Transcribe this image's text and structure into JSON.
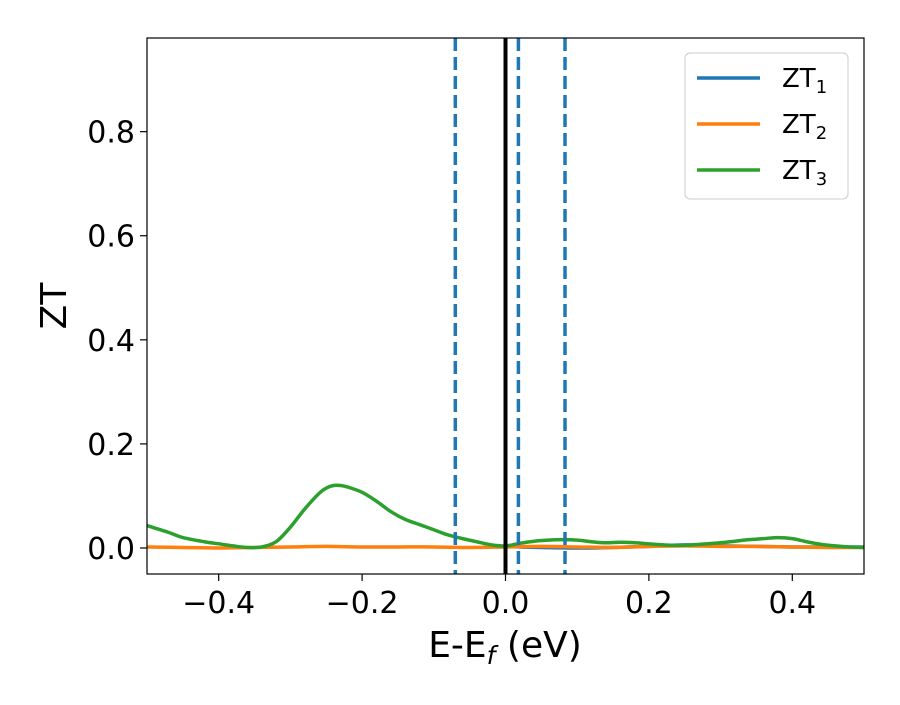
{
  "chart_data": {
    "type": "line",
    "title": "",
    "xlabel": {
      "main": "E-E",
      "sub": "f",
      "tail": " (eV)"
    },
    "ylabel": "ZT",
    "xlim": [
      -0.5,
      0.5
    ],
    "ylim": [
      -0.05,
      0.98
    ],
    "x_ticks": [
      -0.4,
      -0.2,
      0.0,
      0.2,
      0.4
    ],
    "x_tick_labels": [
      "−0.4",
      "−0.2",
      "0.0",
      "0.2",
      "0.4"
    ],
    "y_ticks": [
      0.0,
      0.2,
      0.4,
      0.6,
      0.8
    ],
    "y_tick_labels": [
      "0.0",
      "0.2",
      "0.4",
      "0.6",
      "0.8"
    ],
    "grid": false,
    "legend_position": "top-right",
    "series": [
      {
        "name": "ZT",
        "sub": "1",
        "color": "#1f77b4",
        "x": [
          0.0,
          0.02,
          0.05,
          0.1,
          0.15,
          0.2,
          0.25,
          0.3,
          0.35,
          0.4,
          0.45,
          0.5
        ],
        "y": [
          0.003,
          0.002,
          0.001,
          0.0,
          0.001,
          0.003,
          0.006,
          0.004,
          0.003,
          0.002,
          0.002,
          0.002
        ]
      },
      {
        "name": "ZT",
        "sub": "2",
        "color": "#ff7f0e",
        "x": [
          -0.5,
          -0.45,
          -0.4,
          -0.35,
          -0.3,
          -0.25,
          -0.2,
          -0.15,
          -0.1,
          -0.05,
          0.0,
          0.05,
          0.1,
          0.15,
          0.2,
          0.25,
          0.3,
          0.35,
          0.4,
          0.45,
          0.5
        ],
        "y": [
          0.002,
          0.001,
          0.0,
          0.001,
          0.002,
          0.003,
          0.002,
          0.002,
          0.002,
          0.001,
          0.002,
          0.003,
          0.002,
          0.001,
          0.003,
          0.004,
          0.003,
          0.003,
          0.002,
          0.001,
          0.001
        ]
      },
      {
        "name": "ZT",
        "sub": "3",
        "color": "#2ca02c",
        "x": [
          -0.5,
          -0.47,
          -0.45,
          -0.42,
          -0.4,
          -0.38,
          -0.36,
          -0.34,
          -0.32,
          -0.3,
          -0.28,
          -0.26,
          -0.25,
          -0.24,
          -0.23,
          -0.22,
          -0.2,
          -0.18,
          -0.16,
          -0.14,
          -0.12,
          -0.1,
          -0.08,
          -0.06,
          -0.04,
          -0.02,
          0.0,
          0.02,
          0.04,
          0.06,
          0.08,
          0.1,
          0.12,
          0.14,
          0.16,
          0.18,
          0.2,
          0.22,
          0.24,
          0.26,
          0.28,
          0.3,
          0.32,
          0.34,
          0.36,
          0.38,
          0.4,
          0.42,
          0.44,
          0.46,
          0.48,
          0.5
        ],
        "y": [
          0.043,
          0.03,
          0.02,
          0.012,
          0.008,
          0.004,
          0.001,
          0.002,
          0.012,
          0.04,
          0.075,
          0.105,
          0.115,
          0.12,
          0.12,
          0.117,
          0.107,
          0.09,
          0.07,
          0.055,
          0.045,
          0.035,
          0.025,
          0.018,
          0.012,
          0.006,
          0.004,
          0.009,
          0.013,
          0.015,
          0.016,
          0.015,
          0.012,
          0.01,
          0.011,
          0.01,
          0.008,
          0.006,
          0.005,
          0.006,
          0.008,
          0.01,
          0.013,
          0.016,
          0.018,
          0.02,
          0.018,
          0.012,
          0.007,
          0.004,
          0.002,
          0.001
        ]
      }
    ],
    "vertical_lines": [
      {
        "x": -0.07,
        "style": "dashed",
        "color": "#1f77b4"
      },
      {
        "x": 0.0,
        "style": "solid",
        "color": "#000000"
      },
      {
        "x": 0.018,
        "style": "dashed",
        "color": "#1f77b4"
      },
      {
        "x": 0.083,
        "style": "dashed",
        "color": "#1f77b4"
      }
    ]
  }
}
